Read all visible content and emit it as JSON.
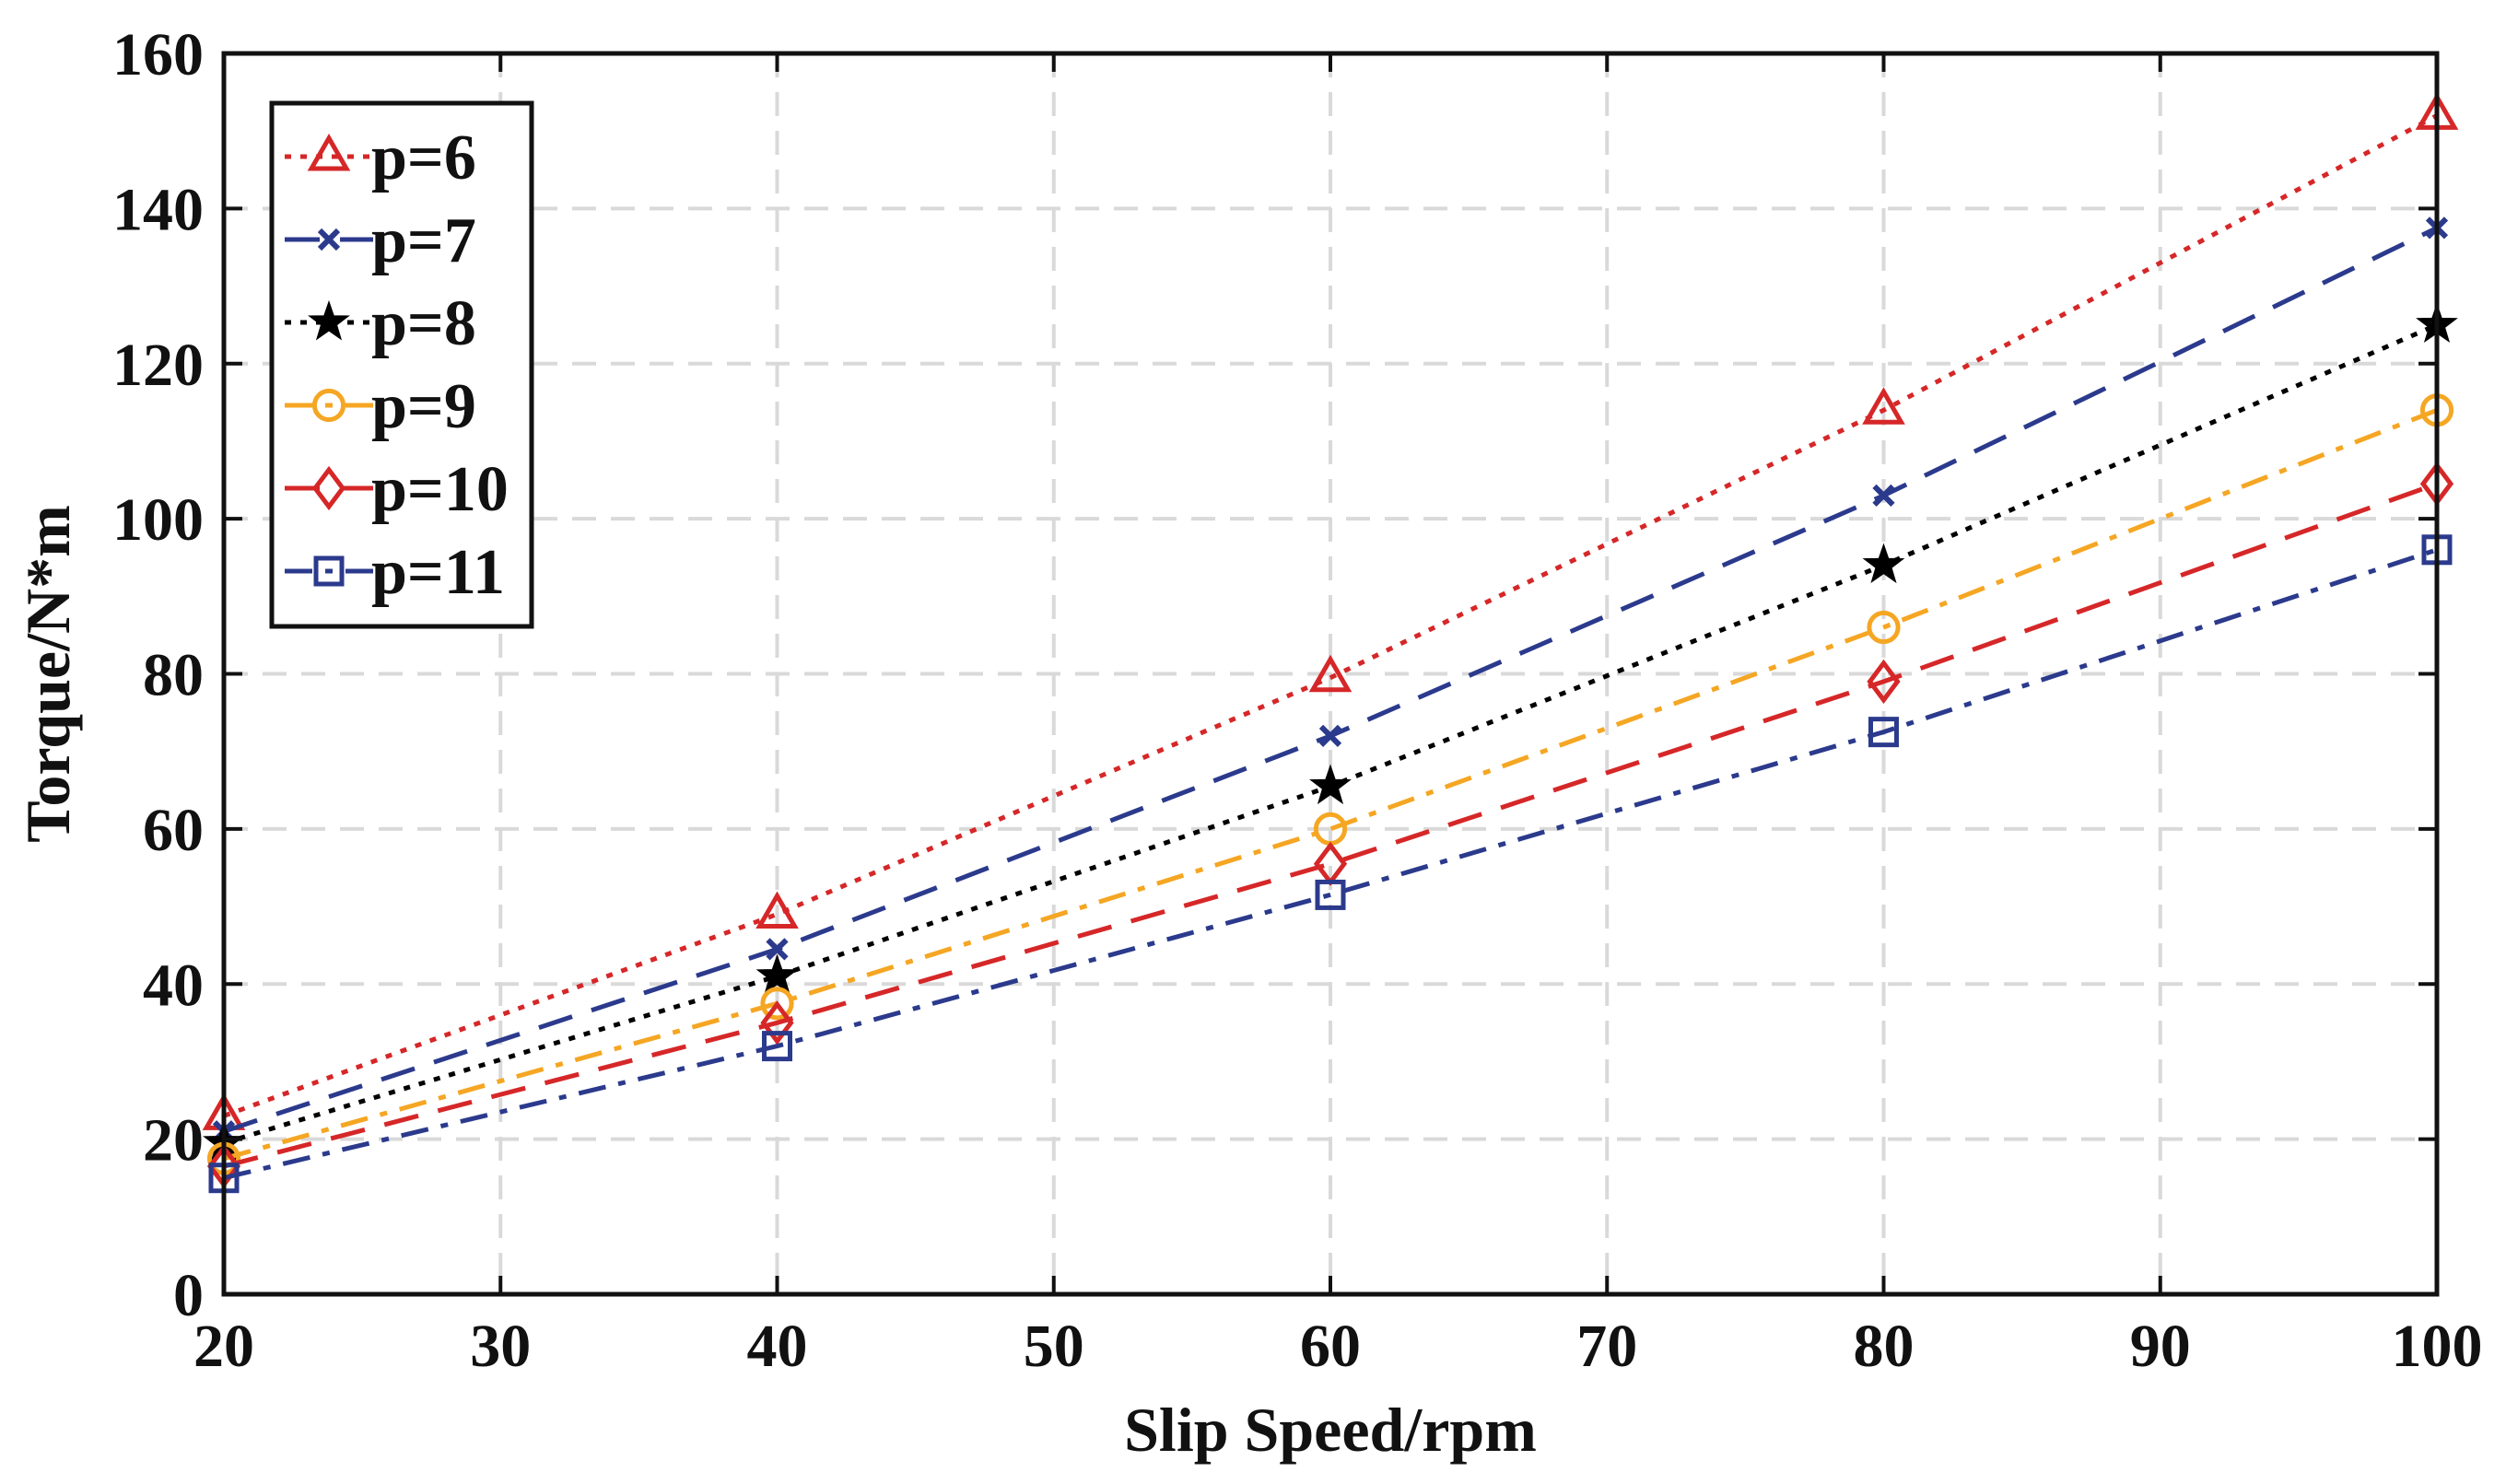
{
  "chart_data": {
    "type": "line",
    "title": "",
    "xlabel": "Slip Speed/rpm",
    "ylabel": "Torque/N*m",
    "xlim": [
      20,
      100
    ],
    "ylim": [
      0,
      160
    ],
    "x_ticks": [
      20,
      30,
      40,
      50,
      60,
      70,
      80,
      90,
      100
    ],
    "y_ticks": [
      0,
      20,
      40,
      60,
      80,
      100,
      120,
      140,
      160
    ],
    "x_tick_labels": [
      "20",
      "30",
      "40",
      "50",
      "60",
      "70",
      "80",
      "90",
      "100"
    ],
    "y_tick_labels": [
      "0",
      "20",
      "40",
      "60",
      "80",
      "100",
      "120",
      "140",
      "160"
    ],
    "grid": true,
    "legend_position": "top-left",
    "x": [
      20,
      40,
      60,
      80,
      100
    ],
    "series": [
      {
        "name": "p=6",
        "values": [
          23,
          49,
          79.5,
          114,
          152
        ],
        "color": "#d62728",
        "marker": "triangle",
        "dash": "dotted"
      },
      {
        "name": "p=7",
        "values": [
          21,
          44.5,
          72,
          103,
          137.5
        ],
        "color": "#2b3a8c",
        "marker": "x",
        "dash": "dashed"
      },
      {
        "name": "p=8",
        "values": [
          19.5,
          41,
          65.5,
          94,
          125
        ],
        "color": "#000000",
        "marker": "star",
        "dash": "dotted"
      },
      {
        "name": "p=9",
        "values": [
          17.5,
          37.5,
          60,
          86,
          114
        ],
        "color": "#f5a623",
        "marker": "circle",
        "dash": "dashdot"
      },
      {
        "name": "p=10",
        "values": [
          16.5,
          35,
          55.5,
          79,
          104.5
        ],
        "color": "#d62728",
        "marker": "diamond",
        "dash": "dashed"
      },
      {
        "name": "p=11",
        "values": [
          15,
          32,
          51.5,
          72.5,
          96
        ],
        "color": "#2b3a8c",
        "marker": "square",
        "dash": "dashdot"
      }
    ]
  }
}
